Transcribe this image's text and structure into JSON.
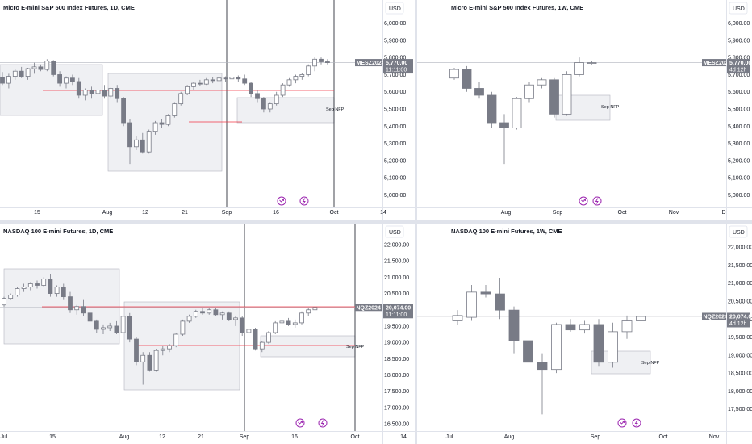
{
  "panes": [
    {
      "id": "mes-1d",
      "title": "Micro E-mini S&P 500 Index Futures, 1D, CME",
      "currency": "USD",
      "symbol_tag": "MESZ2024",
      "price_tag": "5,770.00",
      "countdown": "11:11:00",
      "note": "Sep NFP",
      "colors": {
        "candle": "#787b86",
        "level": "#f23645",
        "box": "#d1d4dc"
      },
      "chart_data": {
        "type": "candlestick",
        "title": "Micro E-mini S&P 500 Index Futures, 1D, CME",
        "ylabel": "USD",
        "ylim": [
          4950,
          6050
        ],
        "yticks": [
          "6,000.00",
          "5,900.00",
          "5,800.00",
          "5,700.00",
          "5,600.00",
          "5,500.00",
          "5,400.00",
          "5,300.00",
          "5,200.00",
          "5,100.00",
          "5,000.00"
        ],
        "ytick_values": [
          6000,
          5900,
          5800,
          5700,
          5600,
          5500,
          5400,
          5300,
          5200,
          5100,
          5000
        ],
        "xticks": [
          "15",
          "Aug",
          "12",
          "21",
          "Sep",
          "16",
          "Oct",
          "14"
        ],
        "last_price": 5770,
        "ohlc": [
          [
            5685,
            5715,
            5640,
            5650
          ],
          [
            5650,
            5705,
            5620,
            5690
          ],
          [
            5690,
            5730,
            5670,
            5720
          ],
          [
            5720,
            5745,
            5680,
            5690
          ],
          [
            5690,
            5740,
            5670,
            5735
          ],
          [
            5735,
            5770,
            5705,
            5745
          ],
          [
            5745,
            5760,
            5720,
            5730
          ],
          [
            5730,
            5790,
            5720,
            5780
          ],
          [
            5780,
            5785,
            5690,
            5700
          ],
          [
            5700,
            5720,
            5630,
            5650
          ],
          [
            5650,
            5690,
            5620,
            5680
          ],
          [
            5680,
            5700,
            5640,
            5660
          ],
          [
            5660,
            5680,
            5560,
            5580
          ],
          [
            5580,
            5620,
            5550,
            5610
          ],
          [
            5610,
            5630,
            5560,
            5590
          ],
          [
            5590,
            5630,
            5570,
            5610
          ],
          [
            5610,
            5640,
            5560,
            5575
          ],
          [
            5575,
            5625,
            5560,
            5620
          ],
          [
            5620,
            5640,
            5540,
            5560
          ],
          [
            5560,
            5570,
            5400,
            5420
          ],
          [
            5420,
            5440,
            5180,
            5280
          ],
          [
            5280,
            5340,
            5260,
            5320
          ],
          [
            5320,
            5360,
            5240,
            5250
          ],
          [
            5250,
            5380,
            5240,
            5370
          ],
          [
            5370,
            5430,
            5350,
            5420
          ],
          [
            5420,
            5440,
            5390,
            5410
          ],
          [
            5410,
            5470,
            5400,
            5460
          ],
          [
            5460,
            5540,
            5450,
            5530
          ],
          [
            5530,
            5600,
            5520,
            5590
          ],
          [
            5590,
            5640,
            5580,
            5630
          ],
          [
            5630,
            5660,
            5610,
            5650
          ],
          [
            5650,
            5670,
            5635,
            5645
          ],
          [
            5645,
            5680,
            5640,
            5670
          ],
          [
            5670,
            5685,
            5650,
            5665
          ],
          [
            5665,
            5690,
            5655,
            5680
          ],
          [
            5680,
            5690,
            5660,
            5675
          ],
          [
            5675,
            5690,
            5650,
            5685
          ],
          [
            5685,
            5695,
            5660,
            5675
          ],
          [
            5675,
            5700,
            5640,
            5650
          ],
          [
            5650,
            5660,
            5570,
            5590
          ],
          [
            5590,
            5610,
            5540,
            5560
          ],
          [
            5560,
            5570,
            5480,
            5500
          ],
          [
            5500,
            5540,
            5480,
            5530
          ],
          [
            5530,
            5600,
            5520,
            5580
          ],
          [
            5580,
            5650,
            5570,
            5640
          ],
          [
            5640,
            5680,
            5630,
            5670
          ],
          [
            5670,
            5700,
            5650,
            5690
          ],
          [
            5690,
            5710,
            5670,
            5700
          ],
          [
            5700,
            5760,
            5690,
            5750
          ],
          [
            5750,
            5800,
            5720,
            5790
          ],
          [
            5790,
            5800,
            5760,
            5775
          ],
          [
            5775,
            5790,
            5760,
            5770
          ]
        ]
      }
    },
    {
      "id": "mes-1w",
      "title": "Micro E-mini S&P 500 Index Futures, 1W, CME",
      "currency": "USD",
      "symbol_tag": "MESZ2024",
      "price_tag": "5,770.00",
      "countdown": "4d 12h",
      "note": "Sep NFP",
      "colors": {
        "candle": "#787b86",
        "box": "#d1d4dc"
      },
      "chart_data": {
        "type": "candlestick",
        "title": "Micro E-mini S&P 500 Index Futures, 1W, CME",
        "ylabel": "USD",
        "ylim": [
          4950,
          6050
        ],
        "yticks": [
          "6,000.00",
          "5,900.00",
          "5,800.00",
          "5,700.00",
          "5,600.00",
          "5,500.00",
          "5,400.00",
          "5,300.00",
          "5,200.00",
          "5,100.00",
          "5,000.00"
        ],
        "ytick_values": [
          6000,
          5900,
          5800,
          5700,
          5600,
          5500,
          5400,
          5300,
          5200,
          5100,
          5000
        ],
        "xticks": [
          "Aug",
          "Sep",
          "Oct",
          "Nov",
          "D"
        ],
        "last_price": 5770,
        "ohlc": [
          [
            5680,
            5740,
            5670,
            5730
          ],
          [
            5730,
            5750,
            5600,
            5620
          ],
          [
            5620,
            5660,
            5560,
            5580
          ],
          [
            5580,
            5600,
            5390,
            5420
          ],
          [
            5420,
            5470,
            5180,
            5390
          ],
          [
            5390,
            5570,
            5380,
            5560
          ],
          [
            5560,
            5660,
            5540,
            5640
          ],
          [
            5640,
            5680,
            5620,
            5670
          ],
          [
            5670,
            5680,
            5450,
            5470
          ],
          [
            5470,
            5720,
            5460,
            5700
          ],
          [
            5700,
            5800,
            5690,
            5770
          ],
          [
            5770,
            5780,
            5760,
            5770
          ]
        ]
      }
    },
    {
      "id": "nq-1d",
      "title": "NASDAQ 100 E-mini Futures, 1D, CME",
      "currency": "USD",
      "symbol_tag": "NQZ2024",
      "price_tag": "20,074.00",
      "countdown": "11:11:00",
      "note": "Sep NFP",
      "colors": {
        "candle": "#787b86",
        "level": "#f23645",
        "box": "#d1d4dc"
      },
      "chart_data": {
        "type": "candlestick",
        "title": "NASDAQ 100 E-mini Futures, 1D, CME",
        "ylabel": "USD",
        "ylim": [
          16400,
          22200
        ],
        "yticks": [
          "22,000.00",
          "21,500.00",
          "21,000.00",
          "20,500.00",
          "20,000.00",
          "19,500.00",
          "19,000.00",
          "18,500.00",
          "18,000.00",
          "17,500.00",
          "17,000.00",
          "16,500.00"
        ],
        "ytick_values": [
          22000,
          21500,
          21000,
          20500,
          20000,
          19500,
          19000,
          18500,
          18000,
          17500,
          17000,
          16500
        ],
        "xticks": [
          "Jul",
          "15",
          "Aug",
          "12",
          "21",
          "Sep",
          "16",
          "Oct",
          "14"
        ],
        "last_price": 20074,
        "ohlc": [
          [
            20150,
            20400,
            20100,
            20350
          ],
          [
            20350,
            20500,
            20300,
            20450
          ],
          [
            20450,
            20700,
            20400,
            20650
          ],
          [
            20650,
            20800,
            20550,
            20700
          ],
          [
            20700,
            20850,
            20600,
            20800
          ],
          [
            20800,
            20900,
            20650,
            20750
          ],
          [
            20750,
            21000,
            20700,
            20950
          ],
          [
            20950,
            21100,
            20400,
            20500
          ],
          [
            20500,
            20750,
            20400,
            20700
          ],
          [
            20700,
            20800,
            20300,
            20400
          ],
          [
            20400,
            20550,
            19900,
            20000
          ],
          [
            20000,
            20150,
            19850,
            20100
          ],
          [
            20100,
            20300,
            19800,
            19900
          ],
          [
            19900,
            20100,
            19600,
            19650
          ],
          [
            19650,
            19700,
            19300,
            19400
          ],
          [
            19400,
            19550,
            19250,
            19450
          ],
          [
            19450,
            19600,
            19350,
            19500
          ],
          [
            19500,
            19650,
            19250,
            19300
          ],
          [
            19300,
            19850,
            19250,
            19800
          ],
          [
            19800,
            19900,
            19000,
            19100
          ],
          [
            19100,
            19150,
            18300,
            18400
          ],
          [
            18400,
            18700,
            17700,
            18600
          ],
          [
            18600,
            18700,
            18100,
            18150
          ],
          [
            18150,
            18800,
            18100,
            18750
          ],
          [
            18750,
            18900,
            18600,
            18800
          ],
          [
            18800,
            18950,
            18700,
            18900
          ],
          [
            18900,
            19300,
            18850,
            19250
          ],
          [
            19250,
            19700,
            19200,
            19650
          ],
          [
            19650,
            19850,
            19600,
            19800
          ],
          [
            19800,
            20000,
            19750,
            19950
          ],
          [
            19950,
            20050,
            19850,
            19900
          ],
          [
            19900,
            20050,
            19850,
            20000
          ],
          [
            20000,
            20050,
            19800,
            19850
          ],
          [
            19850,
            19950,
            19700,
            19900
          ],
          [
            19900,
            19950,
            19650,
            19700
          ],
          [
            19700,
            19800,
            19500,
            19750
          ],
          [
            19750,
            19800,
            19200,
            19300
          ],
          [
            19300,
            19450,
            19000,
            19400
          ],
          [
            19400,
            19450,
            18750,
            18800
          ],
          [
            18800,
            19050,
            18700,
            19000
          ],
          [
            19000,
            19350,
            18950,
            19300
          ],
          [
            19300,
            19650,
            19250,
            19600
          ],
          [
            19600,
            19700,
            19450,
            19650
          ],
          [
            19650,
            19750,
            19500,
            19550
          ],
          [
            19550,
            19700,
            19450,
            19600
          ],
          [
            19600,
            19950,
            19550,
            19900
          ],
          [
            19900,
            20050,
            19800,
            20000
          ],
          [
            20000,
            20100,
            19950,
            20074
          ]
        ]
      }
    },
    {
      "id": "nq-1w",
      "title": "NASDAQ 100 E-mini Futures, 1W, CME",
      "currency": "USD",
      "symbol_tag": "NQZ2024",
      "price_tag": "20,074.00",
      "countdown": "4d 12h",
      "note": "Sep NFP",
      "colors": {
        "candle": "#787b86",
        "box": "#d1d4dc"
      },
      "chart_data": {
        "type": "candlestick",
        "title": "NASDAQ 100 E-mini Futures, 1W, CME",
        "ylabel": "USD",
        "ylim": [
          17000,
          22250
        ],
        "yticks": [
          "22,000.00",
          "21,500.00",
          "21,000.00",
          "20,500.00",
          "20,000.00",
          "19,500.00",
          "19,000.00",
          "18,500.00",
          "18,000.00",
          "17,500.00"
        ],
        "ytick_values": [
          22000,
          21500,
          21000,
          20500,
          20000,
          19500,
          19000,
          18500,
          18000,
          17500
        ],
        "xticks": [
          "Jul",
          "Aug",
          "Sep",
          "Oct",
          "Nov"
        ],
        "last_price": 20074,
        "ohlc": [
          [
            19950,
            20250,
            19850,
            20100
          ],
          [
            20050,
            20950,
            19950,
            20750
          ],
          [
            20750,
            20950,
            20600,
            20700
          ],
          [
            20700,
            21150,
            20000,
            20250
          ],
          [
            20250,
            20350,
            19050,
            19400
          ],
          [
            19400,
            19850,
            18400,
            18800
          ],
          [
            18800,
            19050,
            17350,
            18600
          ],
          [
            18600,
            19900,
            18500,
            19850
          ],
          [
            19850,
            20000,
            19650,
            19700
          ],
          [
            19700,
            19950,
            19600,
            19850
          ],
          [
            19850,
            20000,
            18700,
            18800
          ],
          [
            18800,
            19900,
            18650,
            19650
          ],
          [
            19650,
            20100,
            19450,
            19950
          ],
          [
            19950,
            20050,
            19900,
            20074
          ]
        ]
      }
    }
  ]
}
